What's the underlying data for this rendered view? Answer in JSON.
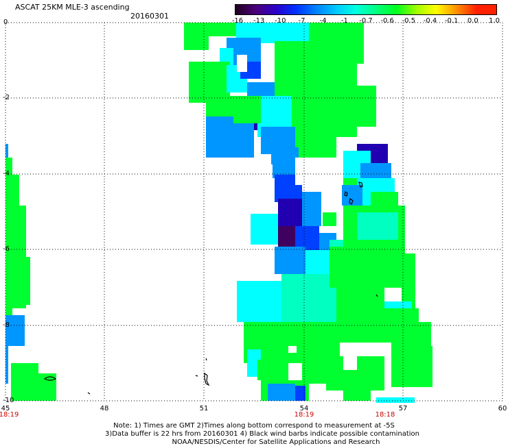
{
  "header": {
    "title": "ASCAT 25KM MLE-3 ascending",
    "date": "20160301"
  },
  "colorbar": {
    "labels": [
      "-16",
      "-13",
      "-10",
      "-7",
      "-4",
      "-1",
      "-0.7",
      "-0.6",
      "-0.5",
      "-0.4",
      "-0.1",
      "0.0",
      "1.0"
    ],
    "colors": [
      "#200020",
      "#4b007a",
      "#2a00c8",
      "#0030ff",
      "#0080ff",
      "#00c8ff",
      "#00ffe0",
      "#00ff80",
      "#00ff20",
      "#a0ff00",
      "#ffff00",
      "#ff9000",
      "#ff2000"
    ]
  },
  "axes": {
    "y_labels": [
      "0",
      "-2",
      "-4",
      "-6",
      "-8",
      "-10"
    ],
    "x_labels": [
      "45",
      "48",
      "51",
      "54",
      "57",
      "60"
    ],
    "time_labels": [
      {
        "text": "18:19",
        "x": "45"
      },
      {
        "text": "18:19",
        "x": "54"
      },
      {
        "text": "18:18",
        "x": "57"
      }
    ]
  },
  "notes": {
    "line1": "Note: 1) Times are GMT 2)Times along bottom correspond to measurement at -5S",
    "line2": "3)Data buffer is 22 hrs from 20160301 4) Black wind barbs indicate possible contamination",
    "line3": "NOAA/NESDIS/Center for Satellite Applications and Research"
  }
}
